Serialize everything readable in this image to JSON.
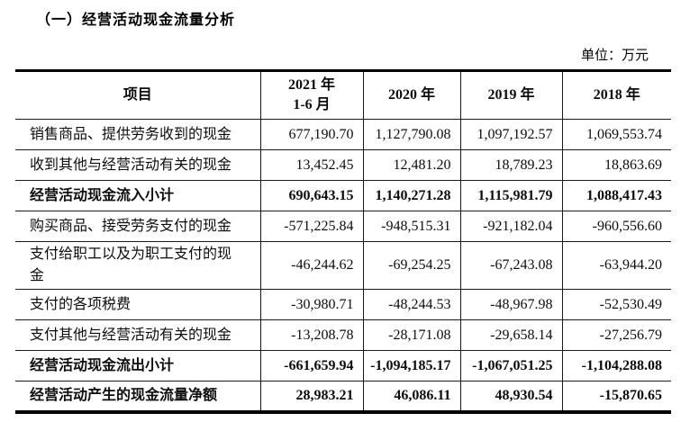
{
  "title": "（一）经营活动现金流量分析",
  "unit_label": "单位：万元",
  "table": {
    "columns": [
      "项目",
      "2021 年\n1-6 月",
      "2020 年",
      "2019 年",
      "2018 年"
    ],
    "rows": [
      {
        "label": "销售商品、提供劳务收到的现金",
        "bold": false,
        "values": [
          "677,190.70",
          "1,127,790.08",
          "1,097,192.57",
          "1,069,553.74"
        ]
      },
      {
        "label": "收到其他与经营活动有关的现金",
        "bold": false,
        "values": [
          "13,452.45",
          "12,481.20",
          "18,789.23",
          "18,863.69"
        ]
      },
      {
        "label": "经营活动现金流入小计",
        "bold": true,
        "values": [
          "690,643.15",
          "1,140,271.28",
          "1,115,981.79",
          "1,088,417.43"
        ]
      },
      {
        "label": "购买商品、接受劳务支付的现金",
        "bold": false,
        "values": [
          "-571,225.84",
          "-948,515.31",
          "-921,182.04",
          "-960,556.60"
        ]
      },
      {
        "label": "支付给职工以及为职工支付的现金",
        "bold": false,
        "values": [
          "-46,244.62",
          "-69,254.25",
          "-67,243.08",
          "-63,944.20"
        ]
      },
      {
        "label": "支付的各项税费",
        "bold": false,
        "values": [
          "-30,980.71",
          "-48,244.53",
          "-48,967.98",
          "-52,530.49"
        ]
      },
      {
        "label": "支付其他与经营活动有关的现金",
        "bold": false,
        "values": [
          "-13,208.78",
          "-28,171.08",
          "-29,658.14",
          "-27,256.79"
        ]
      },
      {
        "label": "经营活动现金流出小计",
        "bold": true,
        "values": [
          "-661,659.94",
          "-1,094,185.17",
          "-1,067,051.25",
          "-1,104,288.08"
        ]
      },
      {
        "label": "经营活动产生的现金流量净额",
        "bold": true,
        "values": [
          "28,983.21",
          "46,086.11",
          "48,930.54",
          "-15,870.65"
        ]
      }
    ]
  }
}
